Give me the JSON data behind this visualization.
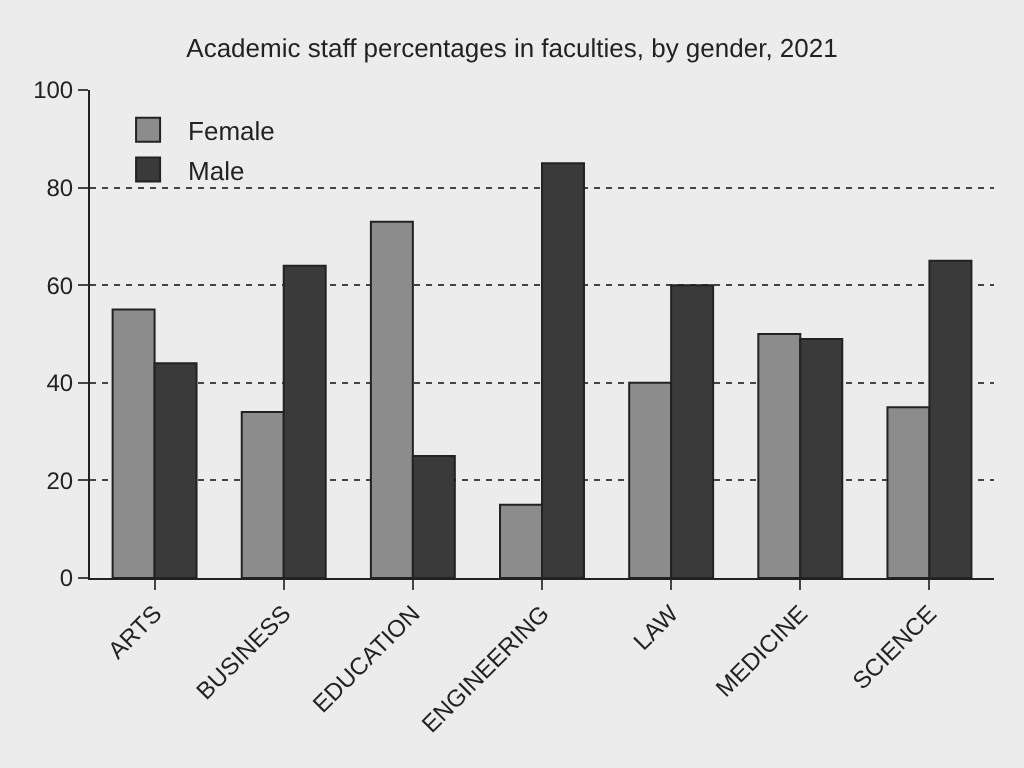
{
  "chart_data": {
    "type": "bar",
    "title": "Academic staff percentages in faculties, by gender, 2021",
    "categories": [
      "ARTS",
      "BUSINESS",
      "EDUCATION",
      "ENGINEERING",
      "LAW",
      "MEDICINE",
      "SCIENCE"
    ],
    "series": [
      {
        "name": "Female",
        "color": "#8c8c8c",
        "values": [
          55,
          34,
          73,
          15,
          40,
          50,
          35
        ]
      },
      {
        "name": "Male",
        "color": "#3a3a3a",
        "values": [
          44,
          64,
          25,
          85,
          60,
          49,
          65
        ]
      }
    ],
    "ylim": [
      0,
      100
    ],
    "yticks": [
      0,
      20,
      40,
      60,
      80,
      100
    ],
    "grid": "y",
    "legend": "top left"
  }
}
